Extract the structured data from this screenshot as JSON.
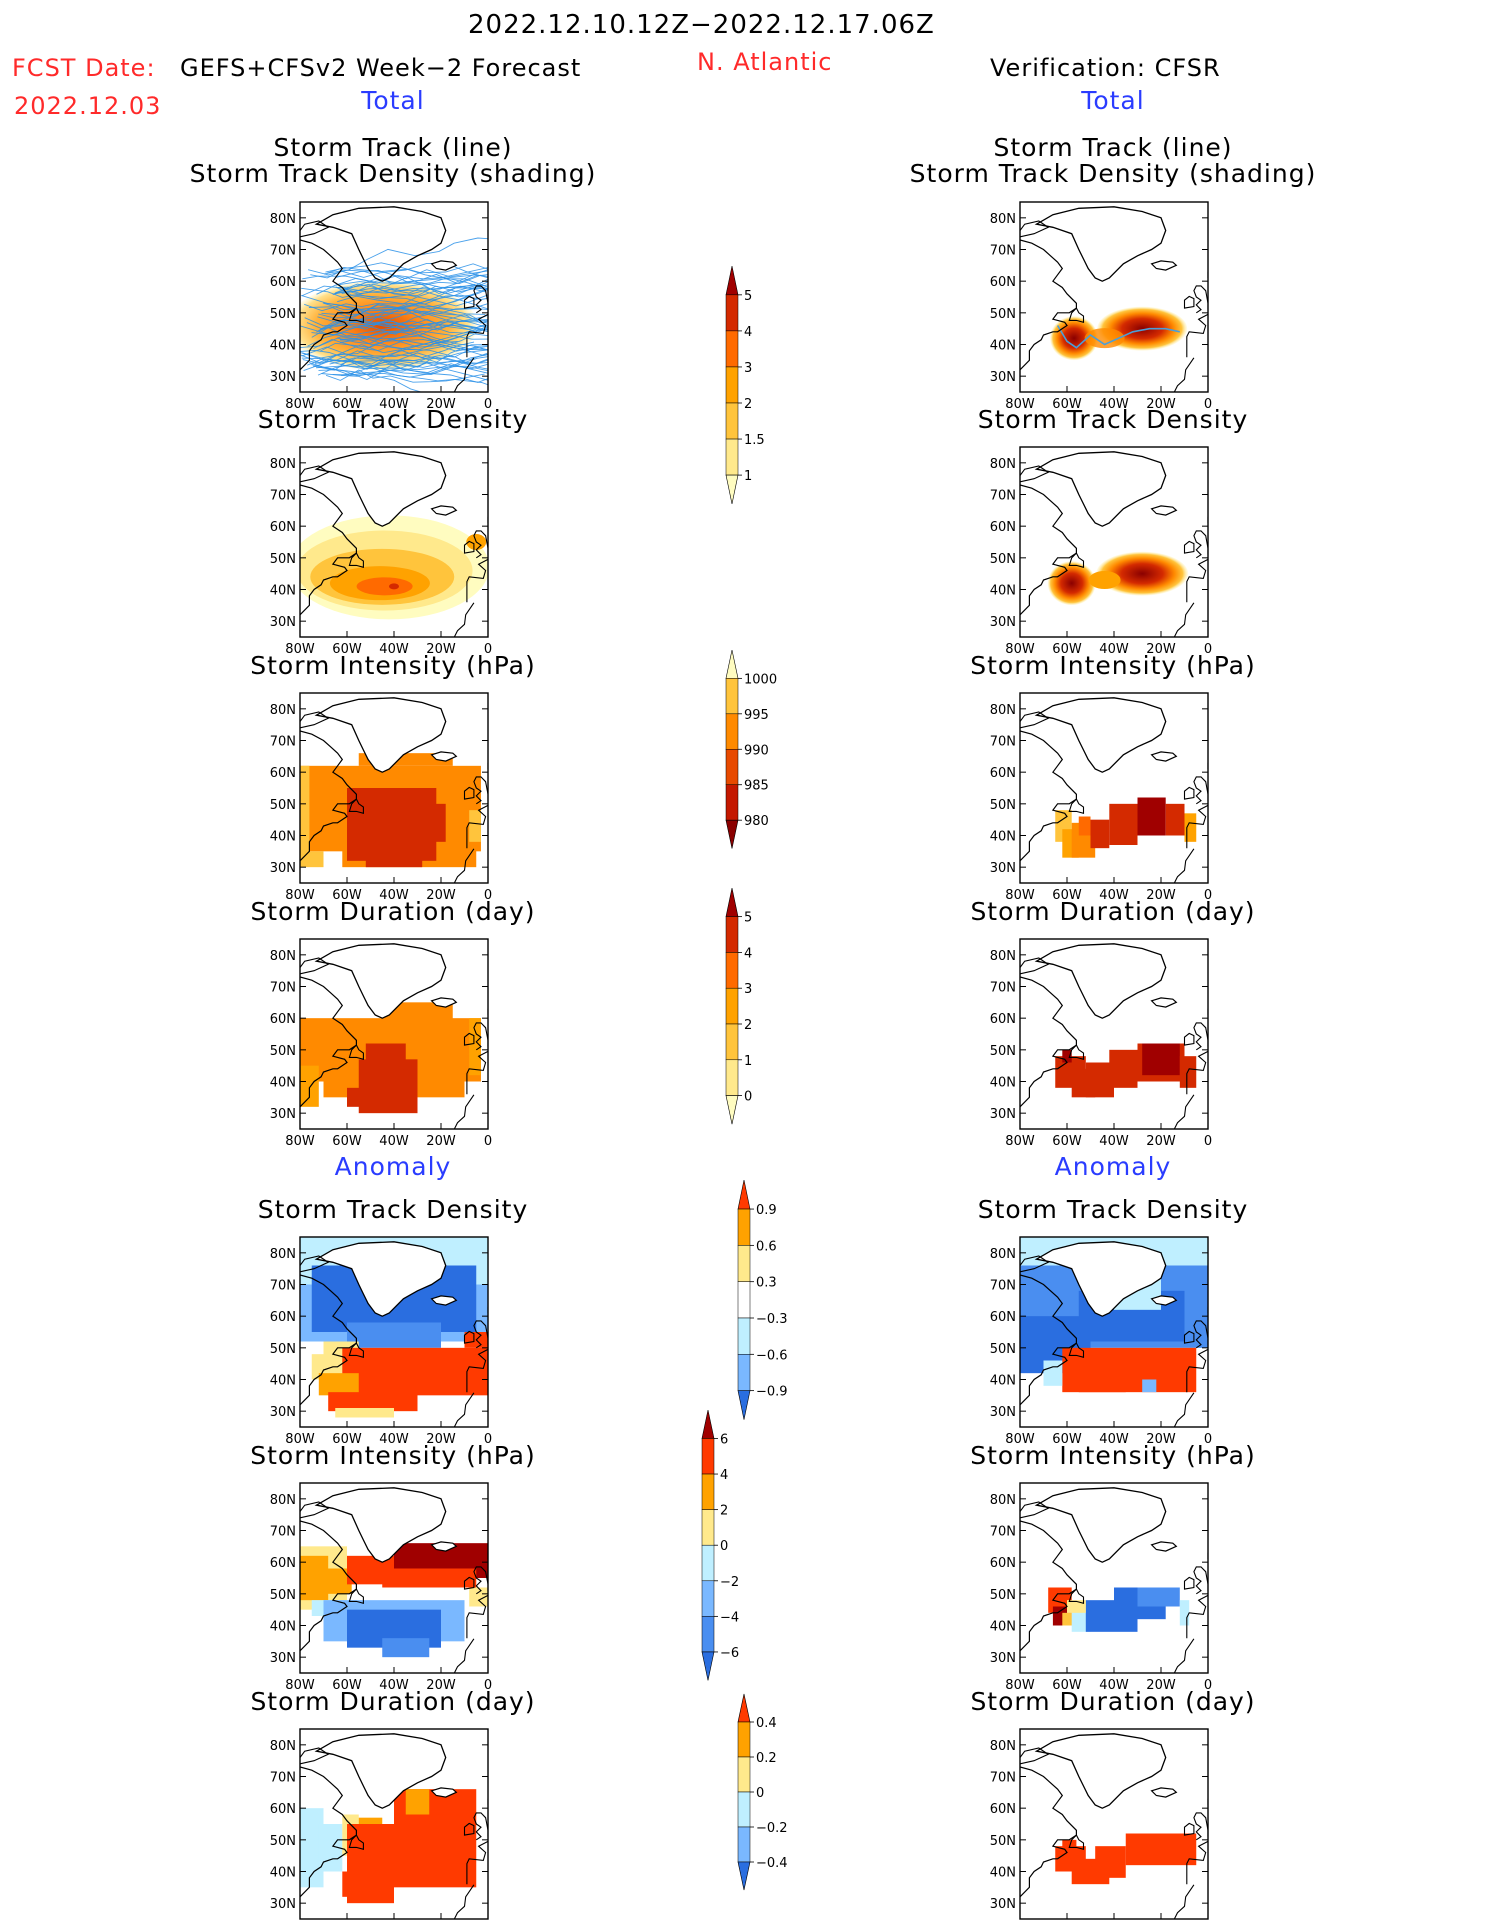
{
  "header": {
    "period": "2022.12.10.12Z−2022.12.17.06Z",
    "fcst_label": "FCST Date:",
    "model": "GEFS+CFSv2 Week−2 Forecast",
    "fcst_date": "2022.12.03",
    "region": "N. Atlantic",
    "verification": "Verification: CFSR"
  },
  "sections": {
    "total_left": "Total",
    "total_right": "Total",
    "anomaly_left": "Anomaly",
    "anomaly_right": "Anomaly"
  },
  "panel_titles": {
    "track_line": "Storm Track (line)",
    "track_density_shading": "Storm Track Density (shading)",
    "density": "Storm Track Density",
    "intensity": "Storm Intensity (hPa)",
    "duration": "Storm Duration (day)"
  },
  "axes": {
    "lat_ticks": [
      "80N",
      "70N",
      "60N",
      "50N",
      "40N",
      "30N"
    ],
    "lon_ticks": [
      "80W",
      "60W",
      "40W",
      "20W",
      "0"
    ]
  },
  "colorbars": {
    "density_total": {
      "labels": [
        "5",
        "4",
        "3",
        "2",
        "1.5",
        "1"
      ],
      "colors": [
        "#a00000",
        "#d42a00",
        "#ff6a00",
        "#ffa200",
        "#ffc43c",
        "#ffe98c",
        "#fffcc0"
      ]
    },
    "intensity_total": {
      "labels": [
        "1000",
        "995",
        "990",
        "985",
        "980"
      ],
      "colors": [
        "#fffcc0",
        "#ffc43c",
        "#ff8a00",
        "#e84a00",
        "#c41800",
        "#8a0000"
      ]
    },
    "duration_total": {
      "labels": [
        "5",
        "4",
        "3",
        "2",
        "1",
        "0"
      ],
      "colors": [
        "#a00000",
        "#d42a00",
        "#ff6a00",
        "#ffa200",
        "#ffc43c",
        "#ffe98c",
        "#fffcc0"
      ]
    },
    "density_anom": {
      "labels": [
        "0.9",
        "0.6",
        "0.3",
        "−0.3",
        "−0.6",
        "−0.9"
      ],
      "colors": [
        "#ff3a00",
        "#ffa200",
        "#ffe98c",
        "#ffffff",
        "#bfefff",
        "#7ab8ff",
        "#2a6ee0"
      ]
    },
    "intensity_anom": {
      "labels": [
        "6",
        "4",
        "2",
        "0",
        "−2",
        "−4",
        "−6"
      ],
      "colors": [
        "#a00000",
        "#ff3a00",
        "#ffa200",
        "#ffe98c",
        "#bfefff",
        "#7ab8ff",
        "#4a8ef0",
        "#2a6ee0"
      ]
    },
    "duration_anom": {
      "labels": [
        "0.4",
        "0.2",
        "0",
        "−0.2",
        "−0.4"
      ],
      "colors": [
        "#ff3a00",
        "#ffa200",
        "#ffe98c",
        "#bfefff",
        "#7ab8ff",
        "#2a6ee0"
      ]
    }
  },
  "maps": {
    "track_total_fcst": "Forecast storm tracks (many blue lines) over track density shading, N. Atlantic",
    "track_total_ver": "Verification storm track line over density shading, 40–50N",
    "density_total_fcst": "Orange band 35–55N, peak near 40W",
    "density_total_ver": "Two dark-red blobs near 60W and 30W at 40–50N",
    "intensity_total_fcst": "Dark red core near 40W, 40N; orange surround",
    "intensity_total_ver": "Orange/red band 40–50N",
    "duration_total_fcst": "Orange field 30–60N; red core near 40W",
    "duration_total_ver": "Red band 35–50N",
    "density_anom_fcst": "Blue north 55–80N, red-orange south 30–50N",
    "density_anom_ver": "Blue north, red band 35–50N",
    "intensity_anom_fcst": "Dark red 55–65N, blue 35–45N",
    "intensity_anom_ver": "Blue band 40–50N, red near 60W",
    "duration_anom_fcst": "Light blue west, red 30–60N east",
    "duration_anom_ver": "Red band 40–50N"
  }
}
